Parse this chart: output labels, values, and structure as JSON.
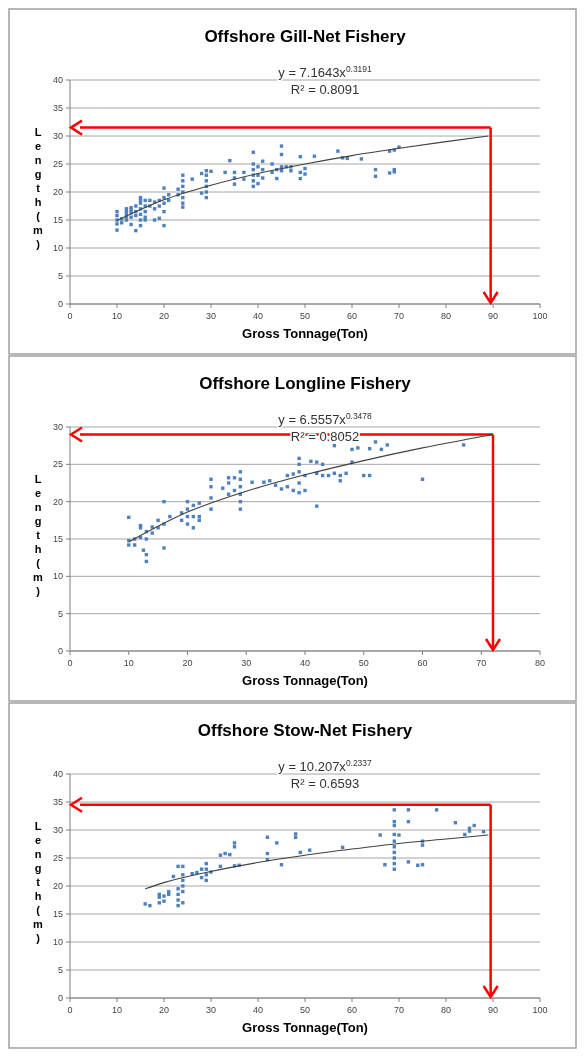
{
  "chart_data": [
    {
      "type": "scatter",
      "title": "Offshore Gill-Net Fishery",
      "xlabel": "Gross Tonnage(Ton)",
      "ylabel": "Length(m)",
      "xlim": [
        0,
        100
      ],
      "xticks": [
        0,
        10,
        20,
        30,
        40,
        50,
        60,
        70,
        80,
        90,
        100
      ],
      "ylim": [
        0,
        40
      ],
      "yticks": [
        0,
        5,
        10,
        15,
        20,
        25,
        30,
        35,
        40
      ],
      "grid": "y",
      "marker": "square",
      "annotations": [
        "y = 7.1643x$^{0.3191}$",
        "R² = 0.8091"
      ],
      "ref_lines": [
        {
          "axis": "y",
          "value": 31.5,
          "color": "#ff0000"
        },
        {
          "axis": "x",
          "value": 89.5,
          "color": "#ff0000"
        }
      ],
      "series": [
        {
          "type": "scatter",
          "color": "#4f81bd",
          "x": [
            10,
            10,
            10,
            10,
            10,
            11,
            11,
            12,
            12,
            12,
            12,
            12,
            13,
            13,
            13,
            13,
            13,
            14,
            14,
            14,
            14,
            15,
            15,
            15,
            15,
            15,
            15,
            15,
            16,
            16,
            16,
            16,
            16,
            17,
            17,
            18,
            18,
            18,
            19,
            19,
            19,
            20,
            20,
            20,
            20,
            20,
            21,
            21,
            23,
            23,
            24,
            24,
            24,
            24,
            24,
            24,
            24,
            26,
            28,
            28,
            29,
            29,
            29,
            29,
            29,
            29,
            30,
            33,
            34,
            35,
            35,
            35,
            37,
            37,
            39,
            39,
            39,
            39,
            39,
            39,
            40,
            40,
            40,
            41,
            41,
            41,
            43,
            43,
            44,
            44,
            45,
            45,
            45,
            45,
            46,
            47,
            47,
            49,
            49,
            49,
            50,
            50,
            52,
            57,
            58,
            59,
            62,
            65,
            65,
            68,
            68,
            69,
            69,
            69,
            70
          ],
          "values": [
            13.2,
            14.3,
            15,
            15.8,
            16.5,
            14.5,
            15.2,
            15.5,
            16,
            16.5,
            17,
            15,
            14.2,
            15.5,
            16.3,
            17.2,
            16.8,
            13.1,
            15.8,
            16.5,
            17.5,
            14,
            15,
            16,
            17,
            18,
            19,
            18.5,
            15,
            15.5,
            16.5,
            17.5,
            18.5,
            17.5,
            18.5,
            15,
            17,
            18.2,
            15.3,
            17.5,
            18.5,
            14,
            16.5,
            18,
            19,
            20.7,
            18.5,
            19.5,
            19.5,
            20.5,
            17.3,
            18,
            19,
            20,
            21,
            22,
            23,
            22.3,
            19.8,
            23.3,
            19,
            20,
            21,
            22,
            23,
            23.8,
            23.7,
            23.5,
            25.6,
            21.4,
            22.5,
            23.5,
            22.3,
            23.5,
            21,
            22,
            23,
            24,
            25,
            27.1,
            21.5,
            23,
            24.5,
            25.5,
            22.5,
            24,
            23.5,
            25,
            22.4,
            24,
            23.8,
            24.5,
            26.7,
            28.2,
            24.5,
            23.8,
            24.5,
            22.4,
            23.5,
            26.3,
            23.2,
            24.2,
            26.4,
            27.3,
            26.1,
            26,
            25.9,
            22.8,
            24,
            23.4,
            27.3,
            23.6,
            24,
            27.5,
            28
          ]
        },
        {
          "type": "line",
          "marker": "none",
          "color": "#404040",
          "x": [
            10,
            20,
            30,
            40,
            50,
            60,
            70,
            80,
            89
          ],
          "values": [
            14.9,
            18.6,
            21.2,
            23.3,
            25,
            26.5,
            27.8,
            29,
            30
          ]
        }
      ]
    },
    {
      "type": "scatter",
      "title": "Offshore Longline Fishery",
      "xlabel": "Gross Tonnage(Ton)",
      "ylabel": "Length(m)",
      "xlim": [
        0,
        80
      ],
      "xticks": [
        0,
        10,
        20,
        30,
        40,
        50,
        60,
        70,
        80
      ],
      "ylim": [
        0,
        30
      ],
      "yticks": [
        0,
        5,
        10,
        15,
        20,
        25,
        30
      ],
      "grid": "y",
      "marker": "square",
      "annotations": [
        "y = 6.5557x$^{0.3478}$",
        "R² = 0.8052"
      ],
      "ref_lines": [
        {
          "axis": "y",
          "value": 29,
          "color": "#ff0000"
        },
        {
          "axis": "x",
          "value": 72,
          "color": "#ff0000"
        }
      ],
      "series": [
        {
          "type": "scatter",
          "color": "#4f81bd",
          "x": [
            10,
            10,
            10,
            11,
            11,
            12,
            12,
            12,
            12.5,
            13,
            13,
            13,
            13,
            14,
            14,
            15,
            15,
            16,
            16,
            16,
            17,
            19,
            19,
            20,
            20,
            20,
            20,
            21,
            21,
            21,
            22,
            22,
            22,
            24,
            24,
            24,
            24,
            26,
            27,
            27,
            27,
            28,
            28,
            29,
            29,
            29,
            29,
            29,
            29,
            31,
            33,
            34,
            35,
            36,
            37,
            37,
            38,
            38,
            39,
            39,
            39,
            39,
            39,
            40,
            40,
            41,
            42,
            42,
            42,
            43,
            43,
            44,
            45,
            45,
            46,
            46,
            47,
            48,
            48,
            49,
            50,
            51,
            51,
            52,
            53,
            54,
            60,
            67
          ],
          "values": [
            14.2,
            14.8,
            17.9,
            14.2,
            15,
            15.2,
            16.5,
            16.8,
            13.5,
            12,
            12.9,
            15,
            16,
            15.8,
            16.6,
            16.5,
            17.5,
            13.8,
            17,
            20,
            18,
            17.5,
            18.5,
            17,
            18,
            19,
            20,
            16.5,
            18,
            19.5,
            17.5,
            18,
            19.8,
            19,
            20.5,
            22,
            23,
            21.8,
            21,
            22.5,
            23.2,
            21.5,
            23.2,
            19,
            20,
            21,
            22,
            23,
            24,
            22.6,
            22.6,
            22.8,
            22.2,
            21.7,
            22,
            23.5,
            21.5,
            23.7,
            21.2,
            22.5,
            24,
            25,
            25.8,
            21.5,
            23.5,
            25.4,
            19.4,
            23.8,
            25.3,
            23.5,
            25,
            23.5,
            23.8,
            27.5,
            22.8,
            23.5,
            23.8,
            25.3,
            27,
            27.2,
            23.5,
            23.5,
            27.1,
            28,
            27,
            27.6,
            23,
            27.6
          ]
        },
        {
          "type": "line",
          "marker": "none",
          "color": "#404040",
          "x": [
            10,
            20,
            30,
            40,
            50,
            60,
            72
          ],
          "values": [
            14.6,
            18.6,
            21.4,
            23.6,
            25.5,
            27.2,
            29
          ]
        }
      ]
    },
    {
      "type": "scatter",
      "title": "Offshore Stow-Net Fishery",
      "xlabel": "Gross Tonnage(Ton)",
      "ylabel": "Length(m)",
      "xlim": [
        0,
        100
      ],
      "xticks": [
        0,
        10,
        20,
        30,
        40,
        50,
        60,
        70,
        80,
        90,
        100
      ],
      "ylim": [
        0,
        40
      ],
      "yticks": [
        0,
        5,
        10,
        15,
        20,
        25,
        30,
        35,
        40
      ],
      "grid": "y",
      "marker": "square",
      "annotations": [
        "y = 10.207x$^{0.2337}$",
        "R² = 0.6593"
      ],
      "ref_lines": [
        {
          "axis": "y",
          "value": 34.5,
          "color": "#ff0000"
        },
        {
          "axis": "x",
          "value": 89.5,
          "color": "#ff0000"
        }
      ],
      "series": [
        {
          "type": "scatter",
          "color": "#4f81bd",
          "x": [
            16,
            17,
            19,
            19,
            19,
            20,
            20,
            21,
            21,
            22,
            23,
            23,
            23,
            23,
            23,
            24,
            24,
            24,
            24,
            24,
            24,
            26,
            27,
            28,
            28,
            29,
            29,
            29,
            29,
            30,
            32,
            32,
            33,
            34,
            35,
            35,
            35,
            36,
            42,
            42,
            42,
            44,
            45,
            48,
            48,
            49,
            51,
            58,
            66,
            67,
            69,
            69,
            69,
            69,
            69,
            69,
            69,
            69,
            69,
            69,
            70,
            72,
            72,
            72,
            74,
            75,
            75,
            75,
            78,
            82,
            84,
            85,
            85,
            86,
            88
          ],
          "values": [
            16.8,
            16.5,
            17,
            18,
            18.5,
            17.3,
            18.2,
            18.5,
            19,
            21.7,
            16.5,
            17.5,
            18.5,
            19.5,
            23.5,
            17,
            19,
            20,
            21,
            22,
            23.5,
            22.2,
            22.4,
            21.5,
            23,
            21,
            22,
            23,
            24,
            22.5,
            23.5,
            25.5,
            25.8,
            25.6,
            23.6,
            27,
            27.7,
            23.7,
            24.7,
            25.8,
            28.7,
            27.7,
            23.8,
            28.7,
            29.3,
            26,
            26.4,
            26.9,
            29.1,
            23.8,
            23,
            24,
            25,
            26,
            27,
            28,
            29.2,
            30.8,
            31.5,
            33.6,
            29.1,
            24.3,
            31.5,
            33.6,
            23.7,
            23.8,
            27.3,
            28,
            33.6,
            31.3,
            29.2,
            29.8,
            30.3,
            30.8,
            29.7
          ]
        },
        {
          "type": "line",
          "marker": "none",
          "color": "#404040",
          "x": [
            16,
            20,
            30,
            40,
            50,
            60,
            70,
            80,
            89
          ],
          "values": [
            19.5,
            20.6,
            22.6,
            24.2,
            25.5,
            26.6,
            27.6,
            28.4,
            29.1
          ]
        }
      ]
    }
  ]
}
